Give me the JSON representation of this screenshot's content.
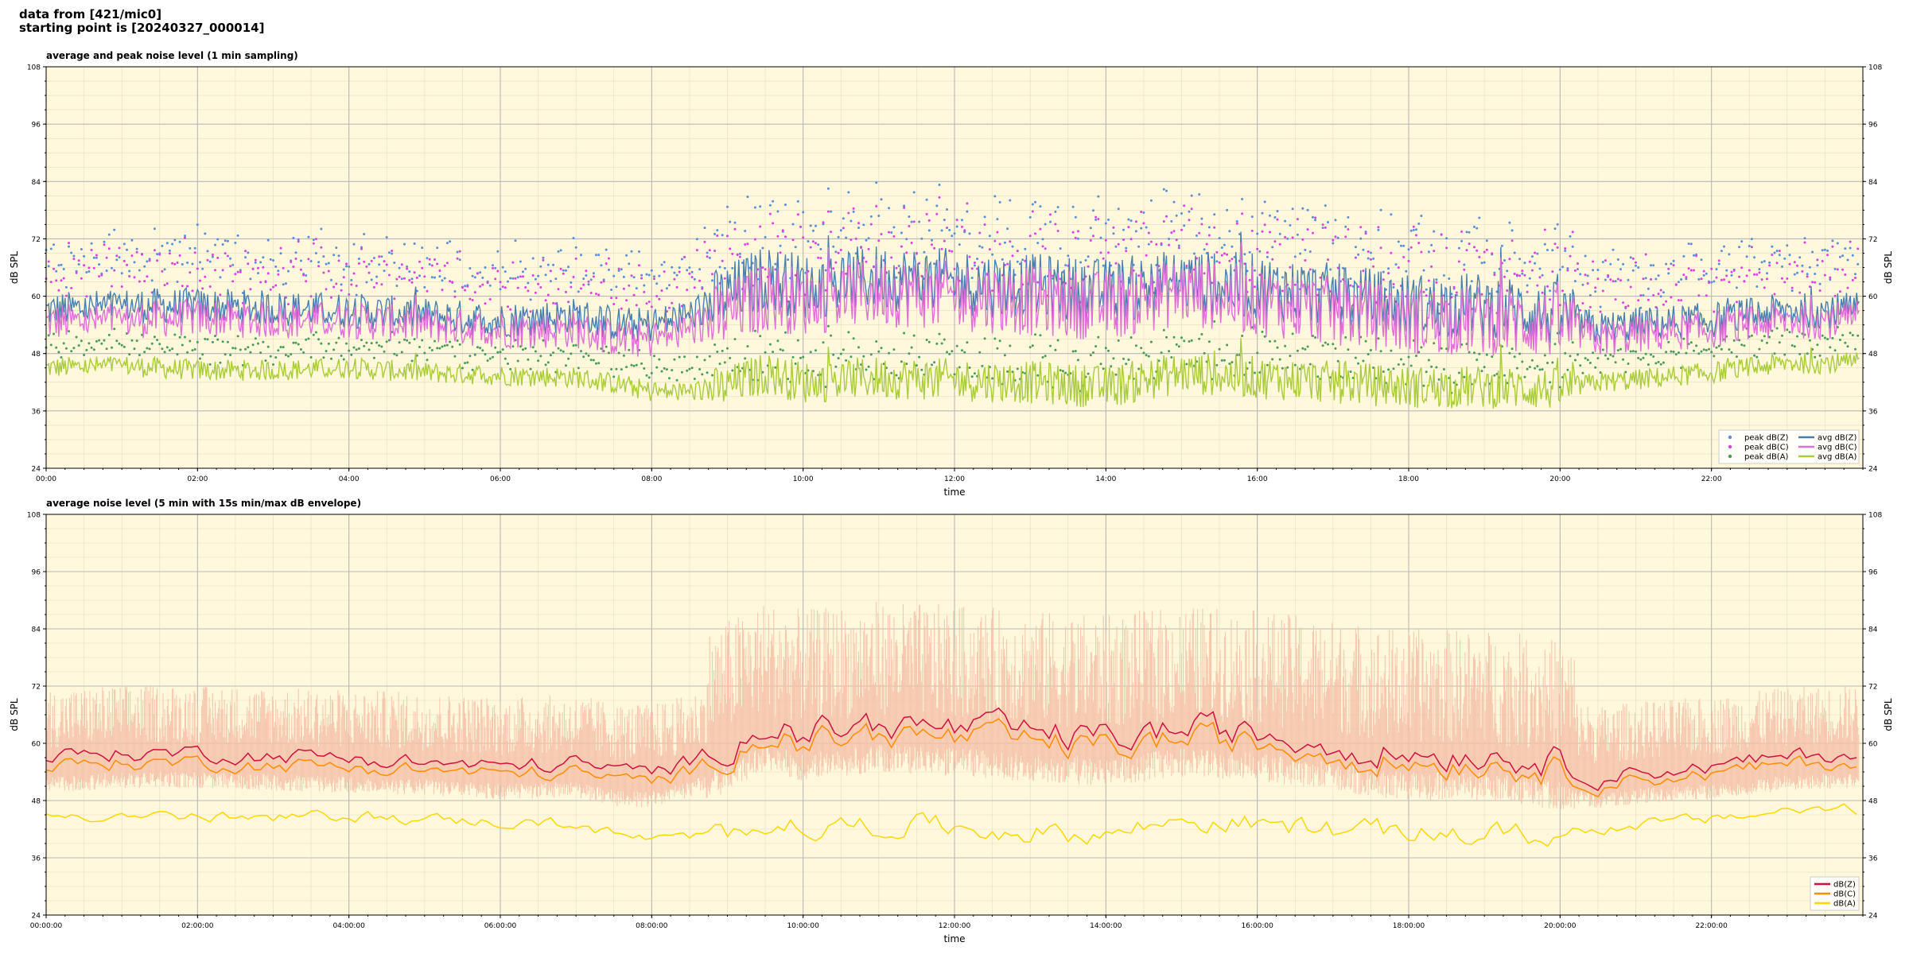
{
  "header": {
    "line1": "data from [421/mic0]",
    "line2": "starting point is [20240327_000014]"
  },
  "chart_data": [
    {
      "type": "line",
      "title": "average and peak noise level (1 min sampling)",
      "xlabel": "time",
      "ylabel": "dB SPL",
      "ylim": [
        24,
        108
      ],
      "yticks": [
        "24",
        "36",
        "48",
        "60",
        "72",
        "84",
        "96",
        "108"
      ],
      "xlim": [
        "00:00",
        "24:00"
      ],
      "xticks": [
        "00:00",
        "02:00",
        "04:00",
        "06:00",
        "08:00",
        "10:00",
        "12:00",
        "14:00",
        "16:00",
        "18:00",
        "20:00",
        "22:00"
      ],
      "grid": true,
      "legend_position": "lower-right",
      "background": "#fff8dc",
      "series": [
        {
          "name": "peak dB(Z)",
          "kind": "scatter",
          "color": "#5a8fd8"
        },
        {
          "name": "peak dB(C)",
          "kind": "scatter",
          "color": "#e040e0"
        },
        {
          "name": "peak dB(A)",
          "kind": "scatter",
          "color": "#4a9a5a"
        },
        {
          "name": "avg dB(Z)",
          "kind": "line",
          "color": "#4a7fb0"
        },
        {
          "name": "avg dB(C)",
          "kind": "line",
          "color": "#e070d8"
        },
        {
          "name": "avg dB(A)",
          "kind": "line",
          "color": "#a8cc3a"
        }
      ],
      "profile_hours": [
        0,
        1,
        2,
        3,
        4,
        5,
        6,
        7,
        7.6,
        8,
        8.5,
        9,
        9.5,
        10,
        11,
        12,
        13,
        14,
        15,
        16,
        17,
        18,
        19,
        20,
        20.5,
        21,
        22,
        23,
        23.9
      ],
      "avg_dBZ_profile": [
        57,
        58,
        58,
        57.5,
        57,
        56,
        55,
        56,
        54,
        54,
        56,
        60,
        64,
        62,
        64,
        63,
        62,
        61,
        63,
        62,
        60,
        58,
        58,
        56,
        53,
        54,
        55,
        57,
        57
      ],
      "avg_dBC_profile": [
        54.5,
        55,
        55.5,
        55,
        55,
        54,
        53,
        53,
        51,
        51,
        53,
        56,
        60,
        59,
        61,
        60,
        59,
        58,
        61,
        59,
        57,
        55,
        55,
        54,
        51,
        52,
        53,
        55,
        55
      ],
      "avg_dBA_profile": [
        45,
        45.5,
        44.5,
        44.5,
        45,
        44,
        43.5,
        43,
        41.5,
        40,
        40,
        41,
        44,
        42,
        43,
        42.5,
        42,
        41,
        44,
        43,
        42,
        41,
        41,
        40.5,
        42,
        42.5,
        44,
        46,
        46
      ],
      "peak_offset_dB": 12
    },
    {
      "type": "line",
      "title": "average noise level (5 min with 15s min/max dB envelope)",
      "xlabel": "time",
      "ylabel": "dB SPL",
      "ylim": [
        24,
        108
      ],
      "yticks": [
        "24",
        "36",
        "48",
        "60",
        "72",
        "84",
        "96",
        "108"
      ],
      "xlim": [
        "00:00:00",
        "24:00:00"
      ],
      "xticks": [
        "00:00:00",
        "02:00:00",
        "04:00:00",
        "06:00:00",
        "08:00:00",
        "10:00:00",
        "12:00:00",
        "14:00:00",
        "16:00:00",
        "18:00:00",
        "20:00:00",
        "22:00:00"
      ],
      "grid": true,
      "legend_position": "lower-right",
      "background": "#fff8dc",
      "envelope_color": "#f5c0a8",
      "series": [
        {
          "name": "dB(Z)",
          "kind": "line",
          "color": "#d01040"
        },
        {
          "name": "dB(C)",
          "kind": "line",
          "color": "#ff8c00"
        },
        {
          "name": "dB(A)",
          "kind": "line",
          "color": "#ffd700"
        }
      ],
      "profile_hours": [
        0,
        1,
        2,
        3,
        4,
        5,
        6,
        7,
        7.6,
        8,
        8.5,
        9,
        9.5,
        10,
        11,
        12,
        13,
        14,
        15,
        16,
        17,
        18,
        19,
        20,
        20.5,
        21,
        22,
        23,
        23.9
      ],
      "dBZ_profile": [
        57,
        58,
        58,
        57.5,
        57,
        56,
        55,
        56,
        54,
        54,
        56,
        60,
        64,
        62,
        64,
        63,
        62,
        61,
        63,
        62,
        60,
        58,
        58,
        56,
        53,
        54,
        55,
        57,
        58
      ],
      "dBC_profile": [
        55,
        56,
        56,
        55.5,
        55,
        54.5,
        53.5,
        54,
        52,
        52,
        54,
        58,
        62,
        60,
        62,
        61,
        60,
        59,
        61,
        60,
        58,
        56,
        56,
        54,
        51.5,
        52.5,
        53.5,
        55.5,
        56
      ],
      "dBA_profile": [
        45,
        45,
        44.5,
        44,
        45,
        44,
        43.5,
        43,
        40.5,
        40,
        40,
        41,
        44,
        42,
        43,
        42.5,
        41.5,
        41,
        44,
        43,
        42,
        41,
        41,
        40.5,
        42,
        43,
        44,
        46,
        46
      ]
    }
  ]
}
